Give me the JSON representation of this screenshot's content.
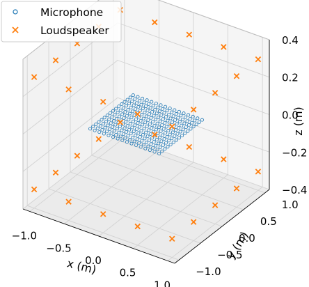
{
  "chart_data": {
    "type": "scatter",
    "title": "",
    "projection": "3d",
    "grid": true,
    "legend_position": "top-left",
    "axes": {
      "x": {
        "label": "x (m)",
        "range": [
          -1.1,
          1.1
        ],
        "ticks": [
          -1.0,
          -0.5,
          0.0,
          0.5,
          1.0
        ],
        "tick_labels": [
          "−1.0",
          "−0.5",
          "0.0",
          "0.5",
          "1.0"
        ]
      },
      "y": {
        "label": "y (m)",
        "range": [
          -1.1,
          1.1
        ],
        "ticks": [
          -1.0,
          -0.5,
          0.0,
          0.5,
          1.0
        ],
        "tick_labels": [
          "−1.0",
          "−0.5",
          "0.0",
          "0.5",
          "1.0"
        ]
      },
      "z": {
        "label": "z (m)",
        "range": [
          -0.4,
          0.4
        ],
        "ticks": [
          -0.4,
          -0.2,
          0.0,
          0.2,
          0.4
        ],
        "tick_labels": [
          "−0.4",
          "−0.2",
          "0.0",
          "0.2",
          "0.4"
        ]
      }
    },
    "series": [
      {
        "name": "Microphone",
        "marker": "open-circle",
        "color": "#1f77b4",
        "grid": {
          "x_range": [
            -0.5,
            0.5
          ],
          "y_range": [
            -0.5,
            0.5
          ],
          "z": 0.0,
          "count_per_side": 16
        }
      },
      {
        "name": "Loudspeaker",
        "marker": "x",
        "color": "#ff7f0e",
        "points": [
          [
            -1.0,
            -1.0,
            -0.3
          ],
          [
            -0.5,
            -1.0,
            -0.3
          ],
          [
            0.0,
            -1.0,
            -0.3
          ],
          [
            0.5,
            -1.0,
            -0.3
          ],
          [
            1.0,
            -1.0,
            -0.3
          ],
          [
            -1.0,
            1.0,
            -0.3
          ],
          [
            -0.5,
            1.0,
            -0.3
          ],
          [
            0.0,
            1.0,
            -0.3
          ],
          [
            0.5,
            1.0,
            -0.3
          ],
          [
            1.0,
            1.0,
            -0.3
          ],
          [
            -1.0,
            -0.5,
            -0.3
          ],
          [
            -1.0,
            0.0,
            -0.3
          ],
          [
            -1.0,
            0.5,
            -0.3
          ],
          [
            1.0,
            -0.5,
            -0.3
          ],
          [
            1.0,
            0.0,
            -0.3
          ],
          [
            1.0,
            0.5,
            -0.3
          ],
          [
            -1.0,
            -1.0,
            0.3
          ],
          [
            -0.5,
            -1.0,
            0.3
          ],
          [
            0.0,
            -1.0,
            0.3
          ],
          [
            0.5,
            -1.0,
            0.3
          ],
          [
            1.0,
            -1.0,
            0.3
          ],
          [
            -1.0,
            1.0,
            0.3
          ],
          [
            -0.5,
            1.0,
            0.3
          ],
          [
            0.0,
            1.0,
            0.3
          ],
          [
            0.5,
            1.0,
            0.3
          ],
          [
            1.0,
            1.0,
            0.3
          ],
          [
            -1.0,
            -0.5,
            0.3
          ],
          [
            -1.0,
            0.0,
            0.3
          ],
          [
            -1.0,
            0.5,
            0.3
          ],
          [
            1.0,
            -0.5,
            0.3
          ],
          [
            1.0,
            0.0,
            0.3
          ],
          [
            1.0,
            0.5,
            0.3
          ]
        ]
      }
    ]
  }
}
